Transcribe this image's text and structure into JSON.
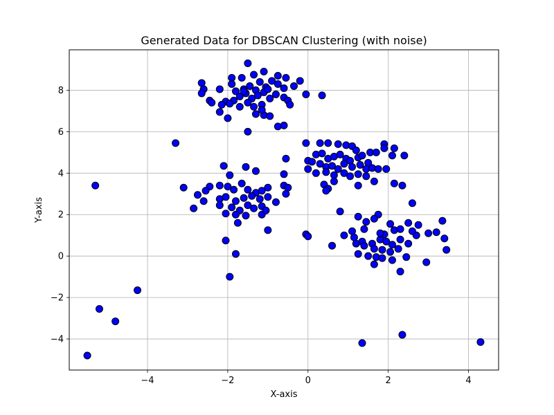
{
  "chart_data": {
    "type": "scatter",
    "title": "Generated Data for DBSCAN Clustering (with noise)",
    "xlabel": "X-axis",
    "ylabel": "Y-axis",
    "xlim": [
      -5.95,
      4.75
    ],
    "ylim": [
      -5.5,
      9.95
    ],
    "xticks": [
      -4,
      -2,
      0,
      2,
      4
    ],
    "yticks": [
      -4,
      -2,
      0,
      2,
      4,
      6,
      8
    ],
    "grid": true,
    "marker_color": "#0000ff",
    "marker_edge_color": "#000000",
    "points": [
      [
        -1.5,
        9.3
      ],
      [
        -1.9,
        8.6
      ],
      [
        -1.65,
        8.6
      ],
      [
        -1.35,
        8.75
      ],
      [
        -1.1,
        8.9
      ],
      [
        -0.75,
        8.7
      ],
      [
        -0.55,
        8.6
      ],
      [
        -0.2,
        8.45
      ],
      [
        -2.65,
        8.35
      ],
      [
        -2.6,
        8.05
      ],
      [
        -2.65,
        7.85
      ],
      [
        -2.2,
        8.05
      ],
      [
        -1.9,
        8.3
      ],
      [
        -1.8,
        7.95
      ],
      [
        -1.6,
        8.05
      ],
      [
        -1.45,
        8.2
      ],
      [
        -1.3,
        8.0
      ],
      [
        -1.2,
        8.4
      ],
      [
        -1.05,
        8.15
      ],
      [
        -0.9,
        8.45
      ],
      [
        -0.75,
        8.3
      ],
      [
        -0.6,
        8.1
      ],
      [
        -0.35,
        8.2
      ],
      [
        -1.7,
        7.7
      ],
      [
        -1.55,
        7.85
      ],
      [
        -1.4,
        7.6
      ],
      [
        -1.25,
        7.75
      ],
      [
        -1.1,
        7.9
      ],
      [
        -0.95,
        7.6
      ],
      [
        -0.8,
        7.8
      ],
      [
        -0.6,
        7.65
      ],
      [
        -1.85,
        7.5
      ],
      [
        -2.05,
        7.45
      ],
      [
        -2.15,
        7.3
      ],
      [
        -1.95,
        7.35
      ],
      [
        -1.7,
        7.2
      ],
      [
        -1.5,
        7.4
      ],
      [
        -1.35,
        7.2
      ],
      [
        -1.15,
        7.3
      ],
      [
        -0.5,
        7.5
      ],
      [
        -0.45,
        7.3
      ],
      [
        -2.45,
        7.5
      ],
      [
        -2.4,
        7.4
      ],
      [
        -2.2,
        6.95
      ],
      [
        -2.0,
        6.65
      ],
      [
        -1.3,
        6.85
      ],
      [
        -1.1,
        6.8
      ],
      [
        -0.95,
        6.75
      ],
      [
        -1.15,
        7.05
      ],
      [
        -0.75,
        6.25
      ],
      [
        -0.6,
        6.3
      ],
      [
        -1.5,
        6.0
      ],
      [
        -0.05,
        7.8
      ],
      [
        0.35,
        7.75
      ],
      [
        -1.6,
        7.95
      ],
      [
        -1.0,
        8.05
      ],
      [
        -3.3,
        5.45
      ],
      [
        -0.05,
        5.45
      ],
      [
        0.3,
        5.45
      ],
      [
        0.5,
        5.45
      ],
      [
        0.75,
        5.4
      ],
      [
        0.95,
        5.35
      ],
      [
        1.1,
        5.3
      ],
      [
        1.2,
        5.1
      ],
      [
        1.55,
        5.0
      ],
      [
        1.7,
        5.0
      ],
      [
        1.9,
        5.4
      ],
      [
        1.9,
        5.2
      ],
      [
        2.15,
        5.2
      ],
      [
        2.1,
        4.85
      ],
      [
        2.4,
        4.85
      ],
      [
        0.2,
        4.9
      ],
      [
        0.35,
        4.95
      ],
      [
        0.5,
        4.7
      ],
      [
        0.65,
        4.8
      ],
      [
        0.8,
        4.9
      ],
      [
        0.95,
        4.7
      ],
      [
        1.05,
        4.6
      ],
      [
        1.25,
        4.75
      ],
      [
        1.35,
        4.85
      ],
      [
        1.5,
        4.5
      ],
      [
        0.0,
        4.6
      ],
      [
        0.1,
        4.55
      ],
      [
        0.3,
        4.45
      ],
      [
        0.45,
        4.3
      ],
      [
        0.6,
        4.35
      ],
      [
        0.75,
        4.2
      ],
      [
        0.9,
        4.45
      ],
      [
        1.1,
        4.3
      ],
      [
        1.3,
        4.4
      ],
      [
        1.45,
        4.2
      ],
      [
        1.6,
        4.25
      ],
      [
        1.75,
        4.2
      ],
      [
        1.95,
        4.2
      ],
      [
        0.0,
        4.2
      ],
      [
        0.2,
        4.0
      ],
      [
        0.45,
        4.05
      ],
      [
        0.65,
        3.9
      ],
      [
        0.9,
        4.0
      ],
      [
        1.05,
        3.85
      ],
      [
        1.25,
        3.95
      ],
      [
        1.45,
        3.85
      ],
      [
        1.65,
        3.6
      ],
      [
        1.25,
        3.4
      ],
      [
        0.4,
        3.45
      ],
      [
        0.5,
        3.25
      ],
      [
        0.45,
        3.15
      ],
      [
        0.65,
        3.6
      ],
      [
        2.15,
        3.5
      ],
      [
        2.35,
        3.4
      ],
      [
        2.6,
        2.55
      ],
      [
        0.8,
        2.15
      ],
      [
        -2.1,
        4.35
      ],
      [
        -1.55,
        4.3
      ],
      [
        -1.3,
        4.1
      ],
      [
        -0.55,
        4.7
      ],
      [
        -1.95,
        3.9
      ],
      [
        -0.6,
        3.95
      ],
      [
        -2.45,
        3.35
      ],
      [
        -2.2,
        3.4
      ],
      [
        -2.0,
        3.35
      ],
      [
        -1.85,
        3.2
      ],
      [
        -1.65,
        3.5
      ],
      [
        -1.5,
        3.2
      ],
      [
        -1.3,
        3.05
      ],
      [
        -1.15,
        3.15
      ],
      [
        -1.0,
        3.3
      ],
      [
        -0.6,
        3.4
      ],
      [
        -0.5,
        3.3
      ],
      [
        -3.1,
        3.3
      ],
      [
        -2.55,
        3.15
      ],
      [
        -2.75,
        2.95
      ],
      [
        -2.6,
        2.65
      ],
      [
        -2.2,
        2.75
      ],
      [
        -2.05,
        2.85
      ],
      [
        -1.8,
        2.65
      ],
      [
        -1.6,
        2.8
      ],
      [
        -1.4,
        2.9
      ],
      [
        -1.2,
        2.75
      ],
      [
        -1.0,
        2.85
      ],
      [
        -0.8,
        2.6
      ],
      [
        -0.55,
        3.0
      ],
      [
        -2.85,
        2.3
      ],
      [
        -2.2,
        2.45
      ],
      [
        -1.9,
        2.35
      ],
      [
        -1.7,
        2.2
      ],
      [
        -1.5,
        2.45
      ],
      [
        -1.35,
        2.3
      ],
      [
        -1.15,
        2.4
      ],
      [
        -2.05,
        2.05
      ],
      [
        -1.8,
        2.0
      ],
      [
        -1.55,
        1.95
      ],
      [
        -1.15,
        2.0
      ],
      [
        -1.05,
        2.2
      ],
      [
        -1.75,
        1.6
      ],
      [
        -1.0,
        1.25
      ],
      [
        -2.05,
        0.75
      ],
      [
        -1.8,
        0.1
      ],
      [
        -1.95,
        -1.0
      ],
      [
        -5.3,
        3.4
      ],
      [
        -0.05,
        1.05
      ],
      [
        0.0,
        0.95
      ],
      [
        0.6,
        0.5
      ],
      [
        0.9,
        1.0
      ],
      [
        1.1,
        1.2
      ],
      [
        1.25,
        1.9
      ],
      [
        1.45,
        1.65
      ],
      [
        1.75,
        2.0
      ],
      [
        1.65,
        1.8
      ],
      [
        2.05,
        1.55
      ],
      [
        2.15,
        1.25
      ],
      [
        2.3,
        1.3
      ],
      [
        2.5,
        1.6
      ],
      [
        2.75,
        1.5
      ],
      [
        3.0,
        1.1
      ],
      [
        3.2,
        1.15
      ],
      [
        3.35,
        1.7
      ],
      [
        3.4,
        0.85
      ],
      [
        1.15,
        0.9
      ],
      [
        1.35,
        0.7
      ],
      [
        1.6,
        0.6
      ],
      [
        1.8,
        0.8
      ],
      [
        1.95,
        0.7
      ],
      [
        2.1,
        0.55
      ],
      [
        2.3,
        0.8
      ],
      [
        2.5,
        0.6
      ],
      [
        2.7,
        1.0
      ],
      [
        1.2,
        0.6
      ],
      [
        1.4,
        0.5
      ],
      [
        1.65,
        0.35
      ],
      [
        1.85,
        0.3
      ],
      [
        2.05,
        0.2
      ],
      [
        2.25,
        0.35
      ],
      [
        1.25,
        0.1
      ],
      [
        1.5,
        0.0
      ],
      [
        1.7,
        -0.05
      ],
      [
        1.85,
        -0.1
      ],
      [
        2.1,
        -0.2
      ],
      [
        2.45,
        -0.05
      ],
      [
        1.65,
        -0.4
      ],
      [
        2.3,
        -0.75
      ],
      [
        2.95,
        -0.3
      ],
      [
        3.45,
        0.3
      ],
      [
        1.4,
        1.3
      ],
      [
        1.9,
        1.05
      ],
      [
        2.6,
        1.2
      ],
      [
        1.8,
        1.1
      ],
      [
        -5.5,
        -4.8
      ],
      [
        -5.2,
        -2.55
      ],
      [
        -4.8,
        -3.15
      ],
      [
        -4.25,
        -1.65
      ],
      [
        1.35,
        -4.2
      ],
      [
        2.35,
        -3.8
      ],
      [
        4.3,
        -4.15
      ]
    ]
  }
}
